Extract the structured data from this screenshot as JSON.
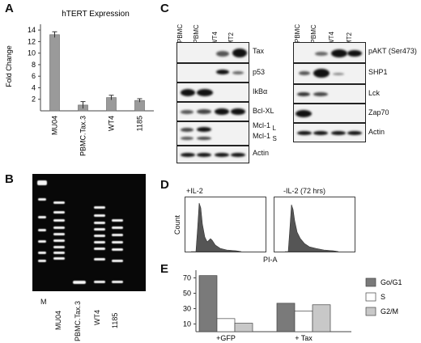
{
  "panels": {
    "A": "A",
    "B": "B",
    "C": "C",
    "D": "D",
    "E": "E"
  },
  "panelA": {
    "chart_data": {
      "type": "bar",
      "title": "hTERT Expression",
      "ylabel": "Fold Change",
      "categories": [
        "MU04",
        "PBMC.Tax.3",
        "WT4",
        "1185"
      ],
      "values": [
        13.2,
        1.0,
        2.3,
        1.8
      ],
      "errors": [
        0.5,
        0.6,
        0.4,
        0.3
      ],
      "yticks": [
        2,
        4,
        6,
        8,
        10,
        12,
        14
      ],
      "ylim": [
        0,
        15
      ],
      "bar_color": "#9a9a9a"
    }
  },
  "panelB": {
    "lanes": [
      "M",
      "MU04",
      "PBMC.Tax.3",
      "WT4",
      "1185"
    ]
  },
  "panelC": {
    "left": {
      "lanes": [
        "R.PBMC",
        "A.PBMC",
        "WT4",
        "MT2"
      ],
      "rows": [
        {
          "label": "Tax"
        },
        {
          "label": "p53"
        },
        {
          "label": "IkBα"
        },
        {
          "label": "Bcl-XL"
        },
        {
          "label": "Mcl-1",
          "sub": "L"
        },
        {
          "label": "Mcl-1",
          "sub": "S"
        },
        {
          "label": "Actin"
        }
      ]
    },
    "right": {
      "lanes": [
        "R.PBMC",
        "A.PBMC",
        "WT4",
        "MT2"
      ],
      "rows": [
        {
          "label": "pAKT (Ser473)"
        },
        {
          "label": "SHP1"
        },
        {
          "label": "Lck"
        },
        {
          "label": "Zap70"
        },
        {
          "label": "Actin"
        }
      ]
    }
  },
  "panelD": {
    "left_title": "+IL-2",
    "right_title": "-IL-2 (72 hrs)",
    "ylabel": "Count",
    "xlabel": "PI-A"
  },
  "panelE": {
    "chart_data": {
      "type": "bar",
      "categories": [
        "+GFP",
        "+ Tax"
      ],
      "series": [
        {
          "name": "Go/G1",
          "values": [
            73,
            37
          ],
          "color": "#7a7a7a"
        },
        {
          "name": "S",
          "values": [
            17,
            27
          ],
          "color": "#ffffff"
        },
        {
          "name": "G2/M",
          "values": [
            11,
            35
          ],
          "color": "#c8c8c8"
        }
      ],
      "yticks": [
        10,
        30,
        50,
        70
      ],
      "ylim": [
        0,
        80
      ],
      "legend": "right"
    }
  }
}
